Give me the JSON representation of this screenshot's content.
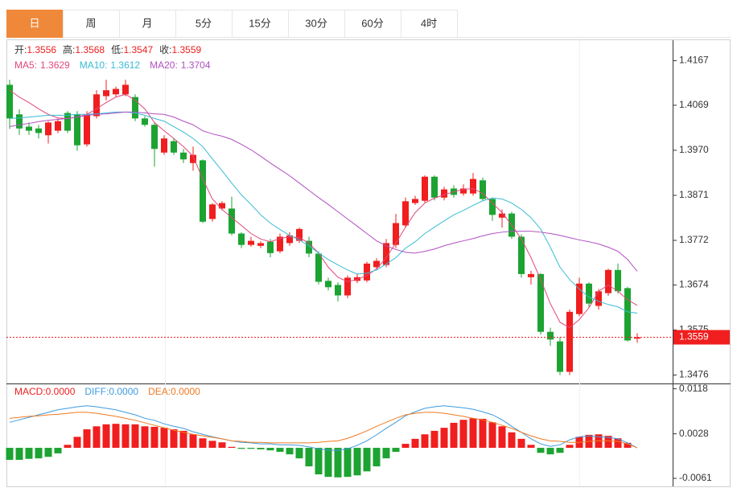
{
  "tabs": [
    "日",
    "周",
    "月",
    "5分",
    "15分",
    "30分",
    "60分",
    "4时"
  ],
  "active_tab": 0,
  "chart_data": [
    {
      "type": "candlestick",
      "up_color": "#f01e1e",
      "down_color": "#1ca332",
      "ohlc_labels": [
        "开:",
        "高:",
        "低:",
        "收:"
      ],
      "open": [
        1.4114,
        1.4049,
        1.4022,
        1.4018,
        1.4003,
        1.4013,
        1.4052,
        1.4049,
        1.3983,
        1.4045,
        1.4089,
        1.4093,
        1.4093,
        1.4087,
        1.404,
        1.4026,
        1.3965,
        1.399,
        1.3965,
        1.3942,
        1.3948,
        1.3819,
        1.3842,
        1.3842,
        1.3787,
        1.3762,
        1.376,
        1.3769,
        1.3748,
        1.3766,
        1.3771,
        1.3771,
        1.3743,
        1.3683,
        1.3674,
        1.3651,
        1.3683,
        1.3684,
        1.3713,
        1.3718,
        1.3762,
        1.3805,
        1.3854,
        1.3859,
        1.3912,
        1.3866,
        1.3886,
        1.3875,
        1.3875,
        1.3904,
        1.3863,
        1.3822,
        1.3831,
        1.378,
        1.3691,
        1.3698,
        1.3571,
        1.355,
        1.3483,
        1.361,
        1.3677,
        1.3628,
        1.3656,
        1.3707,
        1.3667,
        1.3556
      ],
      "high": [
        1.4125,
        1.406,
        1.4031,
        1.4026,
        1.4034,
        1.404,
        1.4056,
        1.4056,
        1.4056,
        1.4102,
        1.4125,
        1.411,
        1.4125,
        1.4093,
        1.4045,
        1.4031,
        1.4003,
        1.3996,
        1.3973,
        1.3978,
        1.395,
        1.3854,
        1.3858,
        1.3868,
        1.379,
        1.378,
        1.377,
        1.3775,
        1.3787,
        1.379,
        1.38,
        1.378,
        1.3748,
        1.369,
        1.368,
        1.3695,
        1.3698,
        1.3725,
        1.3733,
        1.3775,
        1.383,
        1.3866,
        1.387,
        1.3915,
        1.3915,
        1.389,
        1.3893,
        1.3895,
        1.392,
        1.391,
        1.3866,
        1.384,
        1.3835,
        1.3785,
        1.3705,
        1.37,
        1.358,
        1.356,
        1.362,
        1.369,
        1.368,
        1.3665,
        1.371,
        1.3721,
        1.367,
        1.3568
      ],
      "low": [
        1.4017,
        1.4004,
        1.4004,
        1.3996,
        1.3985,
        1.4008,
        1.4008,
        1.3969,
        1.3978,
        1.404,
        1.408,
        1.4087,
        1.4089,
        1.4034,
        1.4022,
        1.3934,
        1.396,
        1.396,
        1.3942,
        1.3925,
        1.381,
        1.3813,
        1.3838,
        1.3783,
        1.3755,
        1.3758,
        1.3755,
        1.3735,
        1.3744,
        1.376,
        1.3766,
        1.3735,
        1.3675,
        1.3662,
        1.3638,
        1.3645,
        1.3678,
        1.368,
        1.3708,
        1.3713,
        1.3755,
        1.38,
        1.385,
        1.3855,
        1.386,
        1.386,
        1.3866,
        1.387,
        1.387,
        1.3858,
        1.3815,
        1.38,
        1.3775,
        1.369,
        1.3675,
        1.3565,
        1.354,
        1.3476,
        1.3476,
        1.3605,
        1.3625,
        1.362,
        1.365,
        1.3655,
        1.355,
        1.3547
      ],
      "close": [
        1.404,
        1.4018,
        1.4013,
        1.4008,
        1.4031,
        1.4034,
        1.4013,
        1.3981,
        1.4049,
        1.4093,
        1.4102,
        1.4105,
        1.4114,
        1.404,
        1.4026,
        1.3973,
        1.3996,
        1.3965,
        1.395,
        1.396,
        1.3813,
        1.3851,
        1.3854,
        1.3787,
        1.3762,
        1.3771,
        1.3766,
        1.3744,
        1.378,
        1.3783,
        1.3797,
        1.3743,
        1.3681,
        1.3669,
        1.3651,
        1.369,
        1.3691,
        1.3721,
        1.3727,
        1.3766,
        1.381,
        1.3858,
        1.3863,
        1.3912,
        1.3866,
        1.3884,
        1.3872,
        1.3886,
        1.3907,
        1.3863,
        1.3828,
        1.3831,
        1.378,
        1.3698,
        1.3698,
        1.3571,
        1.3554,
        1.3483,
        1.3615,
        1.3677,
        1.3633,
        1.366,
        1.3707,
        1.366,
        1.3552,
        1.3559
      ],
      "lines": [
        {
          "name": "MA5:",
          "color": "#e0487c",
          "values": [
            1.4102,
            1.4087,
            1.4075,
            1.4061,
            1.4049,
            1.4041,
            1.404,
            1.4043,
            1.4049,
            1.4061,
            1.4075,
            1.4087,
            1.4093,
            1.408,
            1.4061,
            1.4031,
            1.4013,
            1.3996,
            1.3978,
            1.3957,
            1.3907,
            1.3863,
            1.384,
            1.3822,
            1.3805,
            1.3787,
            1.3775,
            1.3769,
            1.3776,
            1.378,
            1.3778,
            1.3766,
            1.3744,
            1.3713,
            1.3691,
            1.3681,
            1.3686,
            1.3695,
            1.3709,
            1.3734,
            1.3766,
            1.3801,
            1.3833,
            1.3854,
            1.3865,
            1.3872,
            1.3879,
            1.3884,
            1.3886,
            1.3875,
            1.3854,
            1.3833,
            1.3806,
            1.3775,
            1.3734,
            1.3686,
            1.3633,
            1.3592,
            1.358,
            1.3598,
            1.3624,
            1.366,
            1.3674,
            1.366,
            1.3642,
            1.3629
          ]
        },
        {
          "name": "MA10:",
          "color": "#38bcd4",
          "values": [
            1.404,
            1.4041,
            1.4043,
            1.4045,
            1.4047,
            1.4047,
            1.4047,
            1.4049,
            1.4049,
            1.405,
            1.4052,
            1.4054,
            1.4054,
            1.4052,
            1.4047,
            1.404,
            1.4034,
            1.4022,
            1.401,
            1.3996,
            1.3978,
            1.3951,
            1.3925,
            1.3898,
            1.3872,
            1.3851,
            1.3828,
            1.381,
            1.3796,
            1.3783,
            1.3773,
            1.376,
            1.3744,
            1.373,
            1.3718,
            1.3707,
            1.3698,
            1.37,
            1.3707,
            1.372,
            1.3734,
            1.3755,
            1.3769,
            1.3787,
            1.3801,
            1.3815,
            1.3828,
            1.3838,
            1.3849,
            1.3859,
            1.3865,
            1.3863,
            1.3854,
            1.384,
            1.3822,
            1.3797,
            1.3757,
            1.3713,
            1.3686,
            1.3665,
            1.3647,
            1.3638,
            1.3631,
            1.3626,
            1.3615,
            1.3612
          ]
        },
        {
          "name": "MA20:",
          "color": "#b050c0",
          "values": [
            1.4022,
            1.4026,
            1.4029,
            1.4033,
            1.4036,
            1.4038,
            1.404,
            1.4043,
            1.4047,
            1.4049,
            1.405,
            1.4052,
            1.4054,
            1.4054,
            1.4052,
            1.405,
            1.4049,
            1.4043,
            1.4034,
            1.4026,
            1.4013,
            1.4006,
            1.4001,
            1.3994,
            1.3983,
            1.3971,
            1.3957,
            1.3942,
            1.3928,
            1.3914,
            1.3898,
            1.3882,
            1.3866,
            1.3851,
            1.3835,
            1.3819,
            1.3803,
            1.3787,
            1.3771,
            1.376,
            1.3752,
            1.3746,
            1.3744,
            1.3748,
            1.3753,
            1.376,
            1.3766,
            1.3771,
            1.3776,
            1.3782,
            1.3787,
            1.379,
            1.3792,
            1.3792,
            1.3792,
            1.379,
            1.3787,
            1.3783,
            1.3778,
            1.3773,
            1.3769,
            1.3764,
            1.3757,
            1.3748,
            1.373,
            1.3704
          ]
        }
      ],
      "ylim": [
        1.3461,
        1.4212
      ],
      "yticks": [
        1.4167,
        1.4069,
        {
          "value": 1.397,
          "label": "1.3970"
        },
        1.3871,
        1.3772,
        1.3674,
        1.3575,
        1.3476
      ]
    },
    {
      "type": "macd",
      "bars": {
        "name": "MACD:",
        "value_label": "0.0000",
        "up_color": "#f01e1e",
        "down_color": "#1ca332",
        "values": [
          -0.0024,
          -0.0024,
          -0.0022,
          -0.0021,
          -0.0018,
          -0.0011,
          0.0006,
          0.0022,
          0.0037,
          0.0043,
          0.0047,
          0.0048,
          0.0047,
          0.0047,
          0.0043,
          0.0042,
          0.004,
          0.0037,
          0.0034,
          0.0027,
          0.0019,
          0.0014,
          0.0011,
          0.0002,
          -0.0002,
          -0.0002,
          -0.0003,
          -0.0005,
          -0.0008,
          -0.0013,
          -0.0021,
          -0.0037,
          -0.0053,
          -0.0058,
          -0.0059,
          -0.0058,
          -0.0055,
          -0.0047,
          -0.0037,
          -0.0021,
          -0.0008,
          0.0008,
          0.0018,
          0.0027,
          0.0034,
          0.004,
          0.005,
          0.0056,
          0.0059,
          0.0058,
          0.0051,
          0.0043,
          0.0031,
          0.0018,
          0.0006,
          -0.001,
          -0.0013,
          -0.001,
          0.0006,
          0.0022,
          0.0026,
          0.0027,
          0.0024,
          0.0019,
          0.001,
          0
        ]
      },
      "lines": [
        {
          "name": "DIFF:",
          "value_label": "0.0000",
          "color": "#3d9be0",
          "values": [
            0.0051,
            0.0056,
            0.0061,
            0.0066,
            0.0071,
            0.0076,
            0.0079,
            0.0082,
            0.0084,
            0.0082,
            0.0079,
            0.0076,
            0.0071,
            0.0066,
            0.0059,
            0.0055,
            0.0048,
            0.0043,
            0.0039,
            0.0032,
            0.0027,
            0.0022,
            0.0018,
            0.0014,
            0.0011,
            0.001,
            0.0008,
            0.0008,
            0.0006,
            0.0006,
            0.0005,
            0.0002,
            -0.0002,
            -0.0005,
            -0.0005,
            -0.0002,
            0.0005,
            0.0014,
            0.0026,
            0.0039,
            0.0051,
            0.0064,
            0.0072,
            0.0079,
            0.0082,
            0.0084,
            0.0082,
            0.008,
            0.0077,
            0.0072,
            0.0066,
            0.0056,
            0.0043,
            0.0031,
            0.0018,
            0.0008,
            0.0003,
            0.0006,
            0.0016,
            0.0022,
            0.0024,
            0.0022,
            0.0021,
            0.0018,
            0.001,
            0
          ]
        },
        {
          "name": "DEA:",
          "value_label": "0.0000",
          "color": "#f07a22",
          "values": [
            0.0059,
            0.0061,
            0.0063,
            0.0064,
            0.0066,
            0.0067,
            0.0069,
            0.0071,
            0.0071,
            0.0069,
            0.0066,
            0.0063,
            0.0059,
            0.0055,
            0.005,
            0.0045,
            0.004,
            0.0035,
            0.0031,
            0.0027,
            0.0024,
            0.0021,
            0.0018,
            0.0014,
            0.0013,
            0.0011,
            0.0011,
            0.001,
            0.001,
            0.001,
            0.001,
            0.001,
            0.0011,
            0.0013,
            0.0014,
            0.0019,
            0.0026,
            0.0034,
            0.0043,
            0.0051,
            0.0059,
            0.0066,
            0.0069,
            0.0071,
            0.0071,
            0.0069,
            0.0066,
            0.0063,
            0.0059,
            0.0056,
            0.0051,
            0.0045,
            0.0039,
            0.0031,
            0.0024,
            0.0018,
            0.0014,
            0.0013,
            0.0011,
            0.0011,
            0.0013,
            0.0014,
            0.0014,
            0.0013,
            0.0008,
            0
          ]
        }
      ],
      "ylim": [
        -0.0077,
        0.0127
      ],
      "yticks": [
        0.0118,
        0.0028,
        -0.0061
      ]
    }
  ]
}
